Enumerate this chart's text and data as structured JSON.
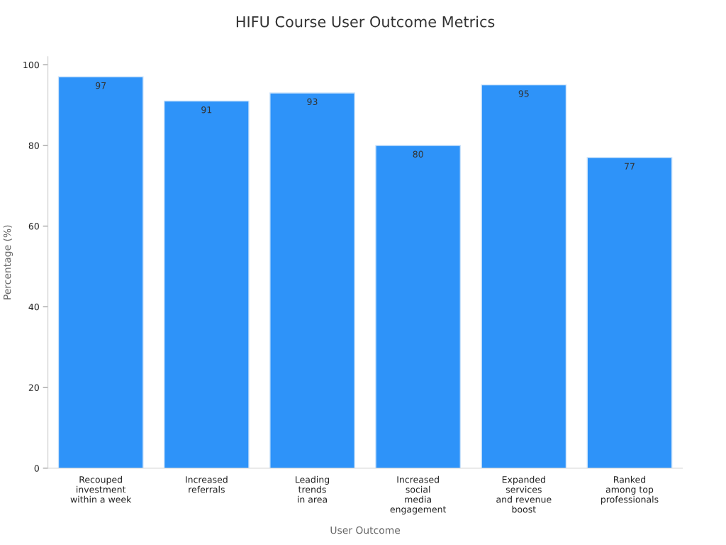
{
  "chart_data": {
    "type": "bar",
    "title": "HIFU Course User Outcome Metrics",
    "xlabel": "User Outcome",
    "ylabel": "Percentage (%)",
    "categories": [
      "Recouped\ninvestment\nwithin a week",
      "Increased\nreferrals",
      "Leading\ntrends\nin area",
      "Increased\nsocial\nmedia\nengagement",
      "Expanded\nservices\nand revenue\nboost",
      "Ranked\namong top\nprofessionals"
    ],
    "values": [
      97,
      91,
      93,
      80,
      95,
      77
    ],
    "color": "#2e93f9",
    "ylim": [
      0,
      102
    ],
    "yticks": [
      0,
      20,
      40,
      60,
      80,
      100
    ],
    "grid": false,
    "legend": false,
    "data_labels": true
  }
}
